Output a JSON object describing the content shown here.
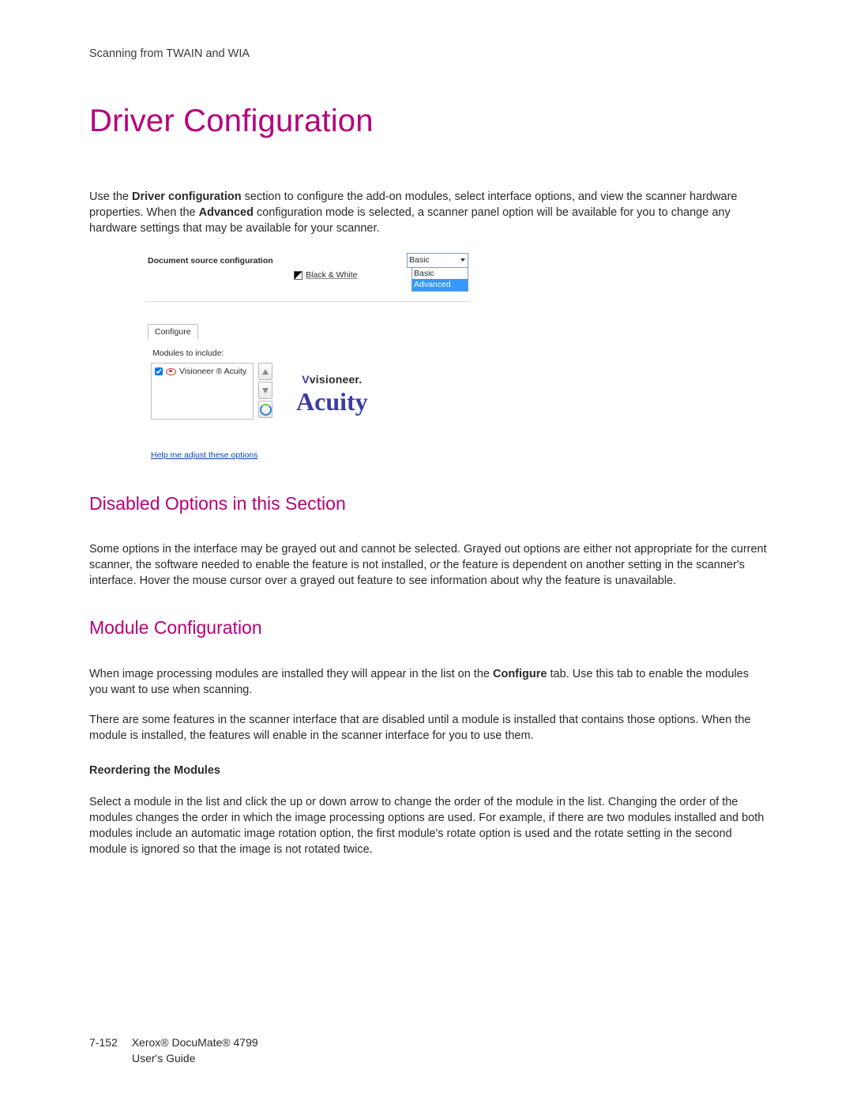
{
  "header": {
    "running_head": "Scanning from TWAIN and WIA"
  },
  "title": "Driver Configuration",
  "intro": {
    "pre": "Use the ",
    "bold1": "Driver configuration",
    "mid1": " section to configure the add-on modules, select interface options, and view the scanner hardware properties. When the ",
    "bold2": "Advanced",
    "post": " configuration mode is selected, a scanner panel option will be available for you to change any hardware settings that may be available for your scanner."
  },
  "mock": {
    "doc_source_title": "Document source configuration",
    "color_mode": "Black & White",
    "dropdown": {
      "selected": "Basic",
      "options": [
        "Basic",
        "Advanced"
      ],
      "highlighted_index": 1
    },
    "tab_label": "Configure",
    "modules_label": "Modules to include:",
    "module_item": "Visioneer ® Acuity",
    "module_checked": true,
    "logo_top": "visioneer.",
    "logo_bottom": "Acuity",
    "help_link": "Help me adjust these options"
  },
  "section_disabled": {
    "heading": "Disabled Options in this Section",
    "p_pre": "Some options in the interface may be grayed out and cannot be selected. Grayed out options are either not appropriate for the current scanner, the software needed to enable the feature is not installed, ",
    "p_em": "or",
    "p_post": " the feature is dependent on another setting in the scanner's interface. Hover the mouse cursor over a grayed out feature to see information about why the feature is unavailable."
  },
  "section_module": {
    "heading": "Module Configuration",
    "p1_pre": "When image processing modules are installed they will appear in the list on the ",
    "p1_bold": "Configure",
    "p1_post": " tab. Use this tab to enable the modules you want to use when scanning.",
    "p2": "There are some features in the scanner interface that are disabled until a module is installed that contains those options. When the module is installed, the features will enable in the scanner interface for you to use them.",
    "subhead": "Reordering the Modules",
    "p3": "Select a module in the list and click the up or down arrow to change the order of the module in the list. Changing the order of the modules changes the order in which the image processing options are used. For example, if there are two modules installed and both modules include an automatic image rotation option, the first module's rotate option is used and the rotate setting in the second module is ignored so that the image is not rotated twice."
  },
  "footer": {
    "page_number": "7-152",
    "product": "Xerox® DocuMate® 4799",
    "subtitle": "User's Guide"
  }
}
